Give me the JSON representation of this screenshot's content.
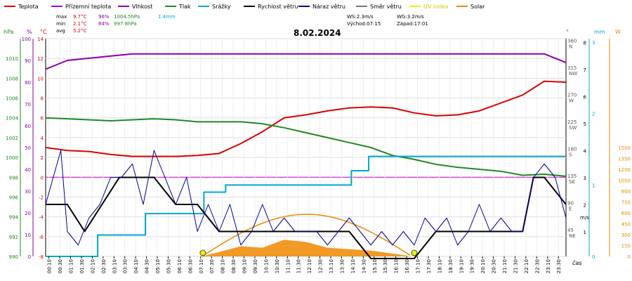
{
  "legend": [
    {
      "label": "Teplota",
      "color": "#dd0000"
    },
    {
      "label": "Přízemní teplota",
      "color": "#aa00cc"
    },
    {
      "label": "Vlhkost",
      "color": "#8800aa"
    },
    {
      "label": "Tlak",
      "color": "#228822"
    },
    {
      "label": "Srážky",
      "color": "#00aacc"
    },
    {
      "label": "Rychlost větru",
      "color": "#000000"
    },
    {
      "label": "Náraz větru",
      "color": "#000099"
    },
    {
      "label": "Směr větru",
      "color": "#777777"
    },
    {
      "label": "UV index",
      "color": "#eeee00"
    },
    {
      "label": "Solar",
      "color": "#ee8800"
    }
  ],
  "stats": {
    "max_label": "max",
    "max_temp": "9.7°C",
    "max_hum": "96%",
    "max_press": "1004.5hPa",
    "max_rain": "1.4mm",
    "min_label": "min",
    "min_temp": "2.1°C",
    "min_hum": "84%",
    "min_press": "997.8hPa",
    "avg_label": "avg",
    "avg_temp": "5.2°C",
    "ws": "WS:2.3m/s",
    "wg": "WG:3.2m/s",
    "sunrise": "Východ:07:15",
    "sunset": "Západ:17:01"
  },
  "chart_data": {
    "type": "line",
    "title": "8.02.2024",
    "xlabel": "čas",
    "x_ticks": [
      "00:10",
      "00:30",
      "01:10",
      "01:30",
      "02:10",
      "02:30",
      "03:10",
      "03:30",
      "04:10",
      "04:30",
      "05:10",
      "05:30",
      "06:10",
      "06:30",
      "07:10",
      "07:30",
      "08:10",
      "08:30",
      "09:10",
      "09:30",
      "10:10",
      "10:30",
      "11:10",
      "11:30",
      "12:10",
      "12:30",
      "13:10",
      "13:30",
      "14:10",
      "14:30",
      "15:10",
      "15:30",
      "16:10",
      "16:30",
      "17:10",
      "17:30",
      "18:10",
      "18:30",
      "19:10",
      "19:30",
      "20:10",
      "20:30",
      "21:10",
      "21:30",
      "22:10",
      "22:30",
      "23:10",
      "23:30"
    ],
    "axes": {
      "pressure": {
        "unit": "hPa",
        "ylim": [
          990,
          1012
        ],
        "ticks": [
          "990",
          "992",
          "994",
          "996",
          "998",
          "1000",
          "1002",
          "1004",
          "1006",
          "1008",
          "1010"
        ]
      },
      "humidity": {
        "unit": "%",
        "ylim": [
          0,
          100
        ],
        "ticks": [
          "0",
          "10",
          "20",
          "30",
          "40",
          "50",
          "60",
          "70",
          "80",
          "90",
          "100"
        ]
      },
      "temperature": {
        "unit": "°C",
        "ylim": [
          -8,
          14
        ],
        "ticks": [
          "-8",
          "-6",
          "-4",
          "-2",
          "0",
          "2",
          "4",
          "6",
          "8",
          "10",
          "12",
          "14"
        ]
      },
      "direction": {
        "unit": "°",
        "ticks": [
          "45 NE",
          "90 E",
          "135 SE",
          "180 S",
          "225 SW",
          "270 W",
          "315 NW",
          "360 N"
        ]
      },
      "wind": {
        "unit": "m/s",
        "ylim": [
          0,
          8
        ],
        "ticks": [
          "1",
          "2",
          "3",
          "4",
          "5",
          "6",
          "7",
          "8"
        ]
      },
      "rain": {
        "unit": "mm",
        "ylim": [
          0,
          3
        ],
        "ticks": [
          "0",
          "1",
          "2",
          "3"
        ]
      },
      "solar": {
        "unit": "W",
        "ticks": [
          "0",
          "150",
          "300",
          "450",
          "600",
          "750",
          "900",
          "1050",
          "1200",
          "1350",
          "1500"
        ]
      }
    },
    "series": [
      {
        "name": "Teplota",
        "axis": "temperature",
        "color": "#dd0000",
        "x": [
          0,
          1,
          2,
          3,
          4,
          5,
          6,
          7,
          8,
          9,
          10,
          11,
          12,
          13,
          14,
          15,
          16,
          17,
          18,
          19,
          20,
          21,
          22,
          23,
          24
        ],
        "y": [
          3.0,
          2.7,
          2.6,
          2.3,
          2.1,
          2.1,
          2.1,
          2.2,
          2.4,
          3.4,
          4.6,
          6.0,
          6.3,
          6.7,
          7.0,
          7.1,
          7.0,
          6.5,
          6.2,
          6.3,
          6.7,
          7.5,
          8.3,
          9.7,
          9.6
        ]
      },
      {
        "name": "Vlhkost",
        "axis": "humidity",
        "color": "#8800aa",
        "x": [
          0,
          1,
          2,
          3,
          4,
          5,
          6,
          7,
          8,
          9,
          10,
          11,
          12,
          13,
          14,
          15,
          16,
          17,
          18,
          19,
          20,
          21,
          22,
          23,
          24
        ],
        "y": [
          86,
          90,
          91,
          92,
          93,
          93,
          93,
          93,
          93,
          93,
          93,
          93,
          93,
          93,
          93,
          93,
          93,
          93,
          93,
          93,
          93,
          93,
          93,
          93,
          89
        ]
      },
      {
        "name": "Tlak",
        "axis": "pressure",
        "color": "#228822",
        "x": [
          0,
          1,
          2,
          3,
          4,
          5,
          6,
          7,
          8,
          9,
          10,
          11,
          12,
          13,
          14,
          15,
          16,
          17,
          18,
          19,
          20,
          21,
          22,
          23,
          24
        ],
        "y": [
          1004.0,
          1003.9,
          1003.8,
          1003.7,
          1003.8,
          1003.9,
          1003.8,
          1003.6,
          1003.6,
          1003.6,
          1003.4,
          1003.0,
          1002.5,
          1002.0,
          1001.5,
          1001.0,
          1000.2,
          999.8,
          999.3,
          999.0,
          998.8,
          998.6,
          998.2,
          998.3,
          998.1
        ]
      },
      {
        "name": "Srážky",
        "axis": "rain",
        "color": "#00aacc",
        "x": [
          0,
          2.4,
          2.4,
          4.6,
          4.6,
          7.3,
          7.3,
          8.3,
          8.3,
          14.1,
          14.1,
          14.9,
          14.9,
          24
        ],
        "y": [
          0,
          0,
          0.3,
          0.3,
          0.6,
          0.6,
          0.9,
          0.9,
          1.0,
          1.0,
          1.2,
          1.2,
          1.4,
          1.4
        ]
      },
      {
        "name": "Rychlost větru",
        "axis": "wind",
        "color": "#000000",
        "x": [
          0,
          1,
          1.8,
          2.6,
          3.4,
          4.4,
          5,
          6,
          7,
          8,
          9,
          10,
          11,
          12,
          13,
          14,
          15,
          16,
          17,
          18,
          19,
          20,
          21,
          22,
          22.5,
          23,
          24
        ],
        "y": [
          2,
          2,
          1,
          2,
          3,
          3,
          3,
          2,
          2,
          1,
          1,
          1,
          1,
          1,
          1,
          1,
          0,
          0,
          0,
          1,
          1,
          1,
          1,
          1,
          3,
          3,
          2
        ]
      },
      {
        "name": "Náraz větru",
        "axis": "wind",
        "color": "#000099",
        "x": [
          0,
          0.7,
          1,
          1.5,
          2,
          2.5,
          3,
          3.5,
          4,
          4.5,
          5,
          5.5,
          6,
          6.5,
          7,
          7.5,
          8,
          8.5,
          9,
          9.5,
          10,
          10.5,
          11,
          11.5,
          12,
          12.5,
          13,
          13.5,
          14,
          14.5,
          15,
          15.5,
          16,
          16.5,
          17,
          17.5,
          18,
          18.5,
          19,
          19.5,
          20,
          20.5,
          21,
          21.5,
          22,
          22.5,
          23,
          23.5,
          24
        ],
        "y": [
          2,
          4,
          1,
          0.5,
          1.5,
          2,
          3,
          3,
          3.5,
          2,
          4,
          3,
          2,
          3,
          1,
          2,
          1,
          2,
          0.5,
          1,
          2,
          1,
          1.5,
          1,
          1,
          1,
          0.5,
          1,
          1.5,
          1,
          0.5,
          1,
          0.5,
          1,
          0.5,
          1.5,
          1,
          1.5,
          0.5,
          1,
          2,
          1,
          1.5,
          1,
          1,
          3,
          3.5,
          3,
          1.5
        ]
      },
      {
        "name": "Solar",
        "axis": "solar",
        "color": "#ee8800",
        "x": [
          7.2,
          8,
          9,
          10,
          11,
          12,
          13,
          14,
          15,
          16,
          16.9
        ],
        "y": [
          0,
          60,
          140,
          120,
          230,
          200,
          120,
          100,
          80,
          40,
          0
        ]
      }
    ]
  }
}
